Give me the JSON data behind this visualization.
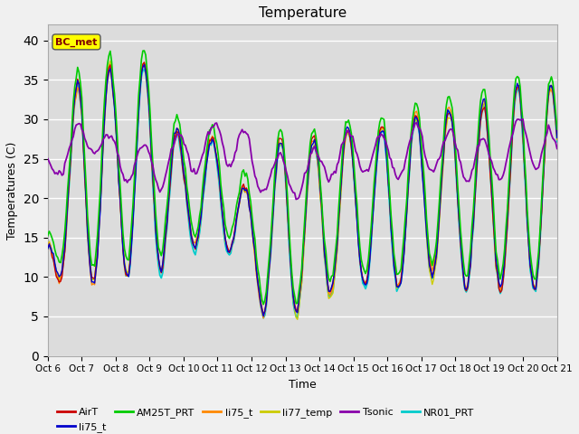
{
  "title": "Temperature",
  "xlabel": "Time",
  "ylabel": "Temperatures (C)",
  "ylim": [
    0,
    42
  ],
  "yticks": [
    0,
    5,
    10,
    15,
    20,
    25,
    30,
    35,
    40
  ],
  "x_labels": [
    "Oct 6",
    "Oct 7",
    "Oct 8",
    "Oct 9",
    "Oct 10",
    "Oct 11",
    "Oct 12",
    "Oct 13",
    "Oct 14",
    "Oct 15",
    "Oct 16",
    "Oct 17",
    "Oct 18",
    "Oct 19",
    "Oct 20",
    "Oct 21"
  ],
  "annotation_text": "BC_met",
  "annotation_box_color": "#ffff00",
  "annotation_text_color": "#800000",
  "bg_color": "#dcdcdc",
  "fig_bg_color": "#f0f0f0",
  "legend_entries": [
    "AirT",
    "li75_t",
    "AM25T_PRT",
    "li75_t",
    "li77_temp",
    "Tsonic",
    "NR01_PRT"
  ],
  "legend_colors": [
    "#cc0000",
    "#0000cc",
    "#00cc00",
    "#ff8800",
    "#cccc00",
    "#8800aa",
    "#00cccc"
  ],
  "n_days": 15,
  "hours_per_day": 24
}
